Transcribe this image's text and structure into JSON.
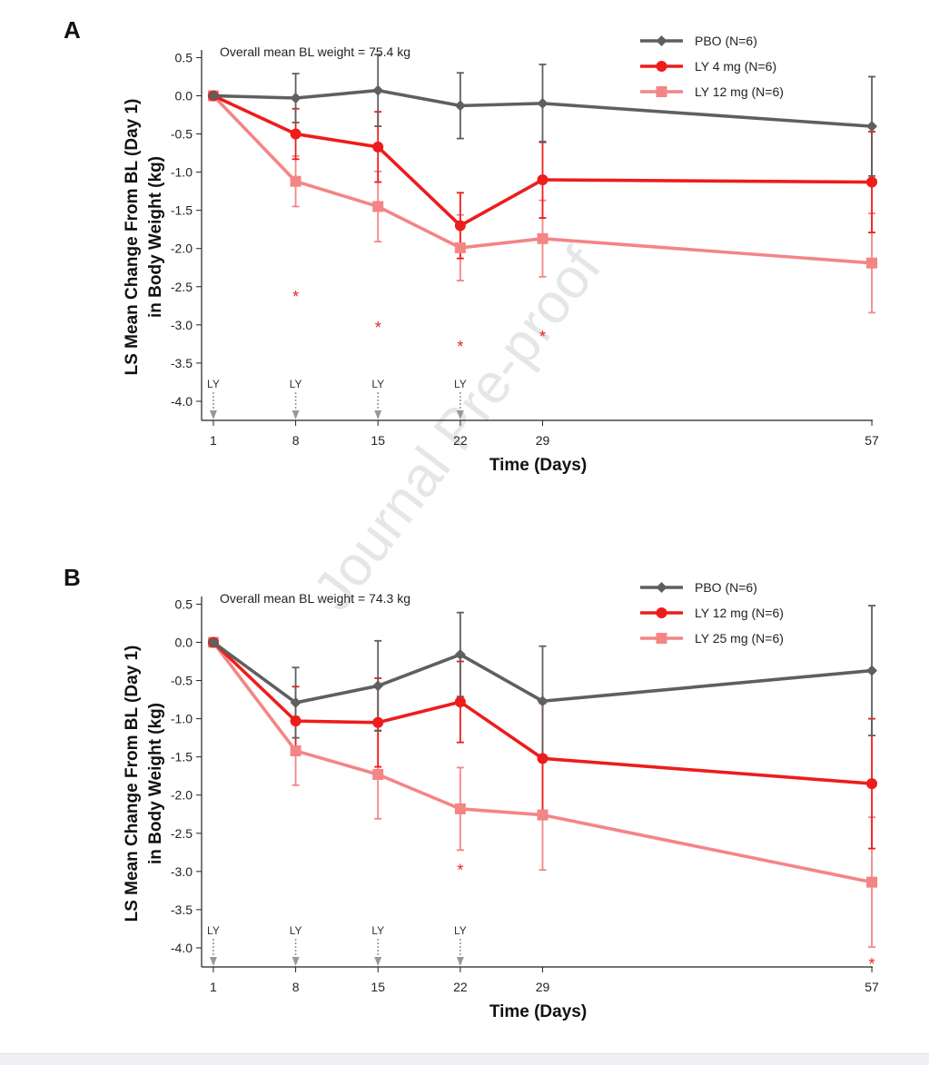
{
  "watermark": "Journal Pre-proof",
  "colors": {
    "pbo": "#5f5f5f",
    "low": "#ee1c1c",
    "high": "#f48585",
    "star": "#e8232a",
    "arrow": "#999999",
    "watermark": "#e6e6e6"
  },
  "chart_data": [
    {
      "panel_label": "A",
      "type": "line",
      "annotation": "Overall mean BL weight = 75.4 kg",
      "xlabel": "Time (Days)",
      "ylabel_line1": "LS Mean Change From BL (Day 1)",
      "ylabel_line2": "in Body Weight (kg)",
      "x_ticks": [
        1,
        8,
        15,
        22,
        29,
        57
      ],
      "y_ticks": [
        "0.5",
        "0.0",
        "-0.5",
        "-1.0",
        "-1.5",
        "-2.0",
        "-2.5",
        "-3.0",
        "-3.5",
        "-4.0"
      ],
      "ylim": [
        -4.25,
        0.6
      ],
      "xlim": [
        0,
        58
      ],
      "dose_marker": "LY",
      "dose_days": [
        1,
        8,
        15,
        22
      ],
      "legend_position": "top-right",
      "series": [
        {
          "name": "PBO (N=6)",
          "marker": "diamond",
          "color_key": "pbo",
          "x": [
            1,
            8,
            15,
            22,
            29,
            57
          ],
          "y": [
            0.0,
            -0.03,
            0.07,
            -0.13,
            -0.1,
            -0.4
          ],
          "err": [
            0,
            0.32,
            0.47,
            0.43,
            0.51,
            0.65
          ]
        },
        {
          "name": "LY 4 mg (N=6)",
          "marker": "circle",
          "color_key": "low",
          "x": [
            1,
            8,
            15,
            22,
            29,
            57
          ],
          "y": [
            0.0,
            -0.5,
            -0.67,
            -1.7,
            -1.1,
            -1.13
          ],
          "err": [
            0,
            0.33,
            0.46,
            0.43,
            0.5,
            0.66
          ]
        },
        {
          "name": "LY 12 mg (N=6)",
          "marker": "square",
          "color_key": "high",
          "x": [
            1,
            8,
            15,
            22,
            29,
            57
          ],
          "y": [
            0.0,
            -1.12,
            -1.45,
            -1.99,
            -1.87,
            -2.19
          ],
          "err": [
            0,
            0.33,
            0.46,
            0.43,
            0.5,
            0.65
          ]
        }
      ],
      "significance": [
        {
          "x": 8,
          "y": -2.6,
          "label": "*"
        },
        {
          "x": 15,
          "y": -3.0,
          "label": "*"
        },
        {
          "x": 22,
          "y": -3.25,
          "label": "*"
        },
        {
          "x": 29,
          "y": -3.12,
          "label": "*"
        }
      ]
    },
    {
      "panel_label": "B",
      "type": "line",
      "annotation": "Overall mean BL weight = 74.3 kg",
      "xlabel": "Time (Days)",
      "ylabel_line1": "LS Mean Change From BL (Day 1)",
      "ylabel_line2": "in Body Weight (kg)",
      "x_ticks": [
        1,
        8,
        15,
        22,
        29,
        57
      ],
      "y_ticks": [
        "0.5",
        "0.0",
        "-0.5",
        "-1.0",
        "-1.5",
        "-2.0",
        "-2.5",
        "-3.0",
        "-3.5",
        "-4.0"
      ],
      "ylim": [
        -4.25,
        0.6
      ],
      "xlim": [
        0,
        58
      ],
      "dose_marker": "LY",
      "dose_days": [
        1,
        8,
        15,
        22
      ],
      "legend_position": "top-right",
      "series": [
        {
          "name": "PBO (N=6)",
          "marker": "diamond",
          "color_key": "pbo",
          "x": [
            1,
            8,
            15,
            22,
            29,
            57
          ],
          "y": [
            0.0,
            -0.79,
            -0.57,
            -0.16,
            -0.77,
            -0.37
          ],
          "err": [
            0,
            0.46,
            0.59,
            0.55,
            0.72,
            0.85
          ]
        },
        {
          "name": "LY 12 mg (N=6)",
          "marker": "circle",
          "color_key": "low",
          "x": [
            1,
            8,
            15,
            22,
            29,
            57
          ],
          "y": [
            0.0,
            -1.03,
            -1.05,
            -0.78,
            -1.52,
            -1.85
          ],
          "err": [
            0,
            0.45,
            0.58,
            0.53,
            0.72,
            0.85
          ]
        },
        {
          "name": "LY 25 mg (N=6)",
          "marker": "square",
          "color_key": "high",
          "x": [
            1,
            8,
            15,
            22,
            29,
            57
          ],
          "y": [
            0.0,
            -1.42,
            -1.73,
            -2.18,
            -2.26,
            -3.14
          ],
          "err": [
            0,
            0.45,
            0.58,
            0.54,
            0.72,
            0.85
          ]
        }
      ],
      "significance": [
        {
          "x": 22,
          "y": -2.95,
          "label": "*"
        },
        {
          "x": 57,
          "y": -4.18,
          "label": "*"
        }
      ]
    }
  ]
}
